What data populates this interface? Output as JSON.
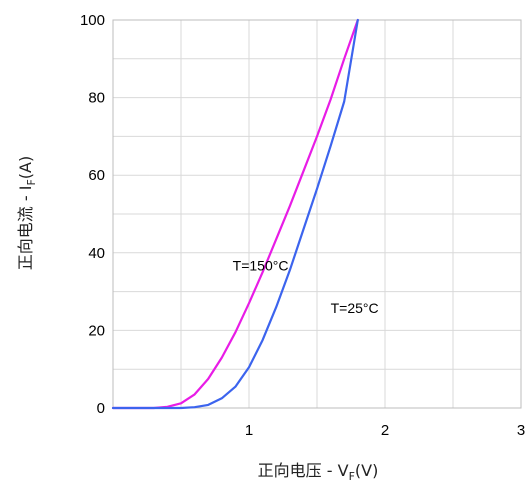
{
  "chart_data": {
    "type": "line",
    "title": "",
    "xlabel": {
      "main": "正向电压 - V",
      "sub": "F",
      "unit": "(V)"
    },
    "ylabel": {
      "main": "正向电流 - I",
      "sub": "F",
      "unit": "(A)"
    },
    "xlim": [
      0,
      3
    ],
    "ylim": [
      0,
      100
    ],
    "xticks": [
      1,
      2,
      3
    ],
    "yticks": [
      0,
      20,
      40,
      60,
      80,
      100
    ],
    "grid": true,
    "series": [
      {
        "name": "T=150°C",
        "color": "#e81ce6",
        "x": [
          0,
          0.3,
          0.4,
          0.5,
          0.6,
          0.7,
          0.8,
          0.9,
          1.0,
          1.1,
          1.2,
          1.3,
          1.4,
          1.5,
          1.6,
          1.7,
          1.8
        ],
        "y": [
          0,
          0,
          0.3,
          1.2,
          3.5,
          7.5,
          13,
          19.5,
          27,
          35,
          43.5,
          52,
          61,
          70,
          79.5,
          90,
          100
        ]
      },
      {
        "name": "T=25°C",
        "color": "#3c64ee",
        "x": [
          0,
          0.5,
          0.6,
          0.7,
          0.8,
          0.9,
          1.0,
          1.1,
          1.2,
          1.3,
          1.4,
          1.5,
          1.6,
          1.7,
          1.8
        ],
        "y": [
          0,
          0,
          0.2,
          0.8,
          2.5,
          5.5,
          10.5,
          17.5,
          26,
          35.5,
          46,
          56.5,
          67.5,
          79,
          100
        ]
      }
    ],
    "annotations": [
      {
        "text": "T=150°C",
        "x": 0.88,
        "y": 35.5
      },
      {
        "text": "T=25°C",
        "x": 1.6,
        "y": 24.5
      }
    ]
  }
}
